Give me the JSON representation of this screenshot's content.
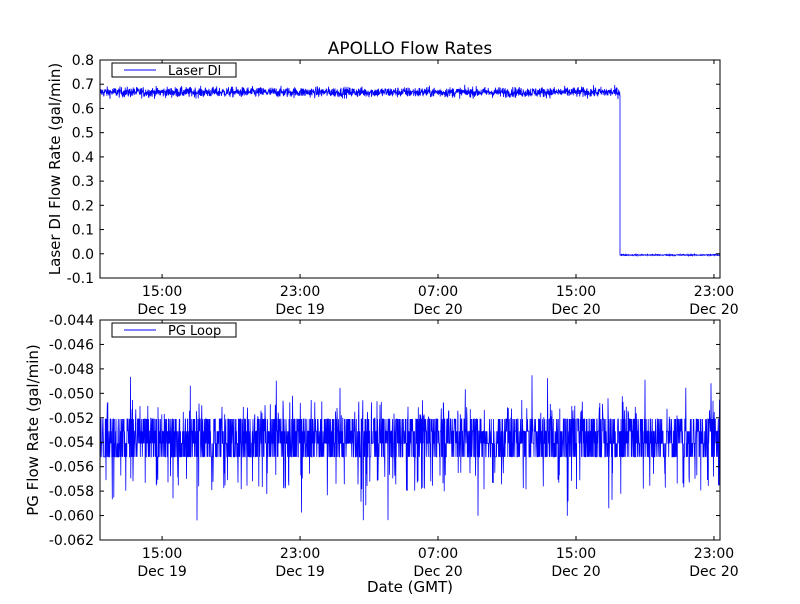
{
  "chart_data": [
    {
      "type": "line",
      "title": "APOLLO Flow Rates",
      "xlabel": "",
      "ylabel": "Laser DI Flow Rate (gal/min)",
      "x_units": "hours since Dec 19 00:00 GMT",
      "xlim": [
        11.4,
        47.35
      ],
      "ylim": [
        -0.1,
        0.8
      ],
      "yticks": [
        -0.1,
        0.0,
        0.1,
        0.2,
        0.3,
        0.4,
        0.5,
        0.6,
        0.7,
        0.8
      ],
      "ytick_labels": [
        "-0.1",
        "0.0",
        "0.1",
        "0.2",
        "0.3",
        "0.4",
        "0.5",
        "0.6",
        "0.7",
        "0.8"
      ],
      "xticks": [
        15,
        23,
        31,
        39,
        47
      ],
      "xtick_labels": [
        [
          "15:00",
          "Dec 19"
        ],
        [
          "23:00",
          "Dec 19"
        ],
        [
          "07:00",
          "Dec 20"
        ],
        [
          "15:00",
          "Dec 20"
        ],
        [
          "23:00",
          "Dec 20"
        ]
      ],
      "legend": {
        "label": "Laser DI",
        "placement": "top-left"
      },
      "grid": false,
      "series": [
        {
          "name": "Laser DI",
          "color": "#0000ff",
          "segments": [
            {
              "x_start": 11.4,
              "x_end": 41.55,
              "mean": 0.667,
              "noise": 0.015,
              "min": 0.62,
              "max": 0.715
            },
            {
              "x_start": 41.55,
              "x_end": 47.35,
              "mean": -0.005,
              "noise": 0.002,
              "min": -0.01,
              "max": 0.0
            }
          ]
        }
      ]
    },
    {
      "type": "line",
      "xlabel": "Date (GMT)",
      "ylabel": "PG Flow Rate (gal/min)",
      "x_units": "hours since Dec 19 00:00 GMT",
      "xlim": [
        11.4,
        47.35
      ],
      "ylim": [
        -0.062,
        -0.044
      ],
      "yticks": [
        -0.062,
        -0.06,
        -0.058,
        -0.056,
        -0.054,
        -0.052,
        -0.05,
        -0.048,
        -0.046,
        -0.044
      ],
      "ytick_labels": [
        "-0.062",
        "-0.060",
        "-0.058",
        "-0.056",
        "-0.054",
        "-0.052",
        "-0.050",
        "-0.048",
        "-0.046",
        "-0.044"
      ],
      "xticks": [
        15,
        23,
        31,
        39,
        47
      ],
      "xtick_labels": [
        [
          "15:00",
          "Dec 19"
        ],
        [
          "23:00",
          "Dec 19"
        ],
        [
          "07:00",
          "Dec 20"
        ],
        [
          "15:00",
          "Dec 20"
        ],
        [
          "23:00",
          "Dec 20"
        ]
      ],
      "legend": {
        "label": "PG Loop",
        "placement": "top-left"
      },
      "grid": false,
      "series": [
        {
          "name": "PG Loop",
          "color": "#0000ff",
          "levels": [
            -0.0552,
            -0.0541,
            -0.0531,
            -0.0521
          ],
          "min": -0.061,
          "max": -0.046
        }
      ]
    }
  ]
}
